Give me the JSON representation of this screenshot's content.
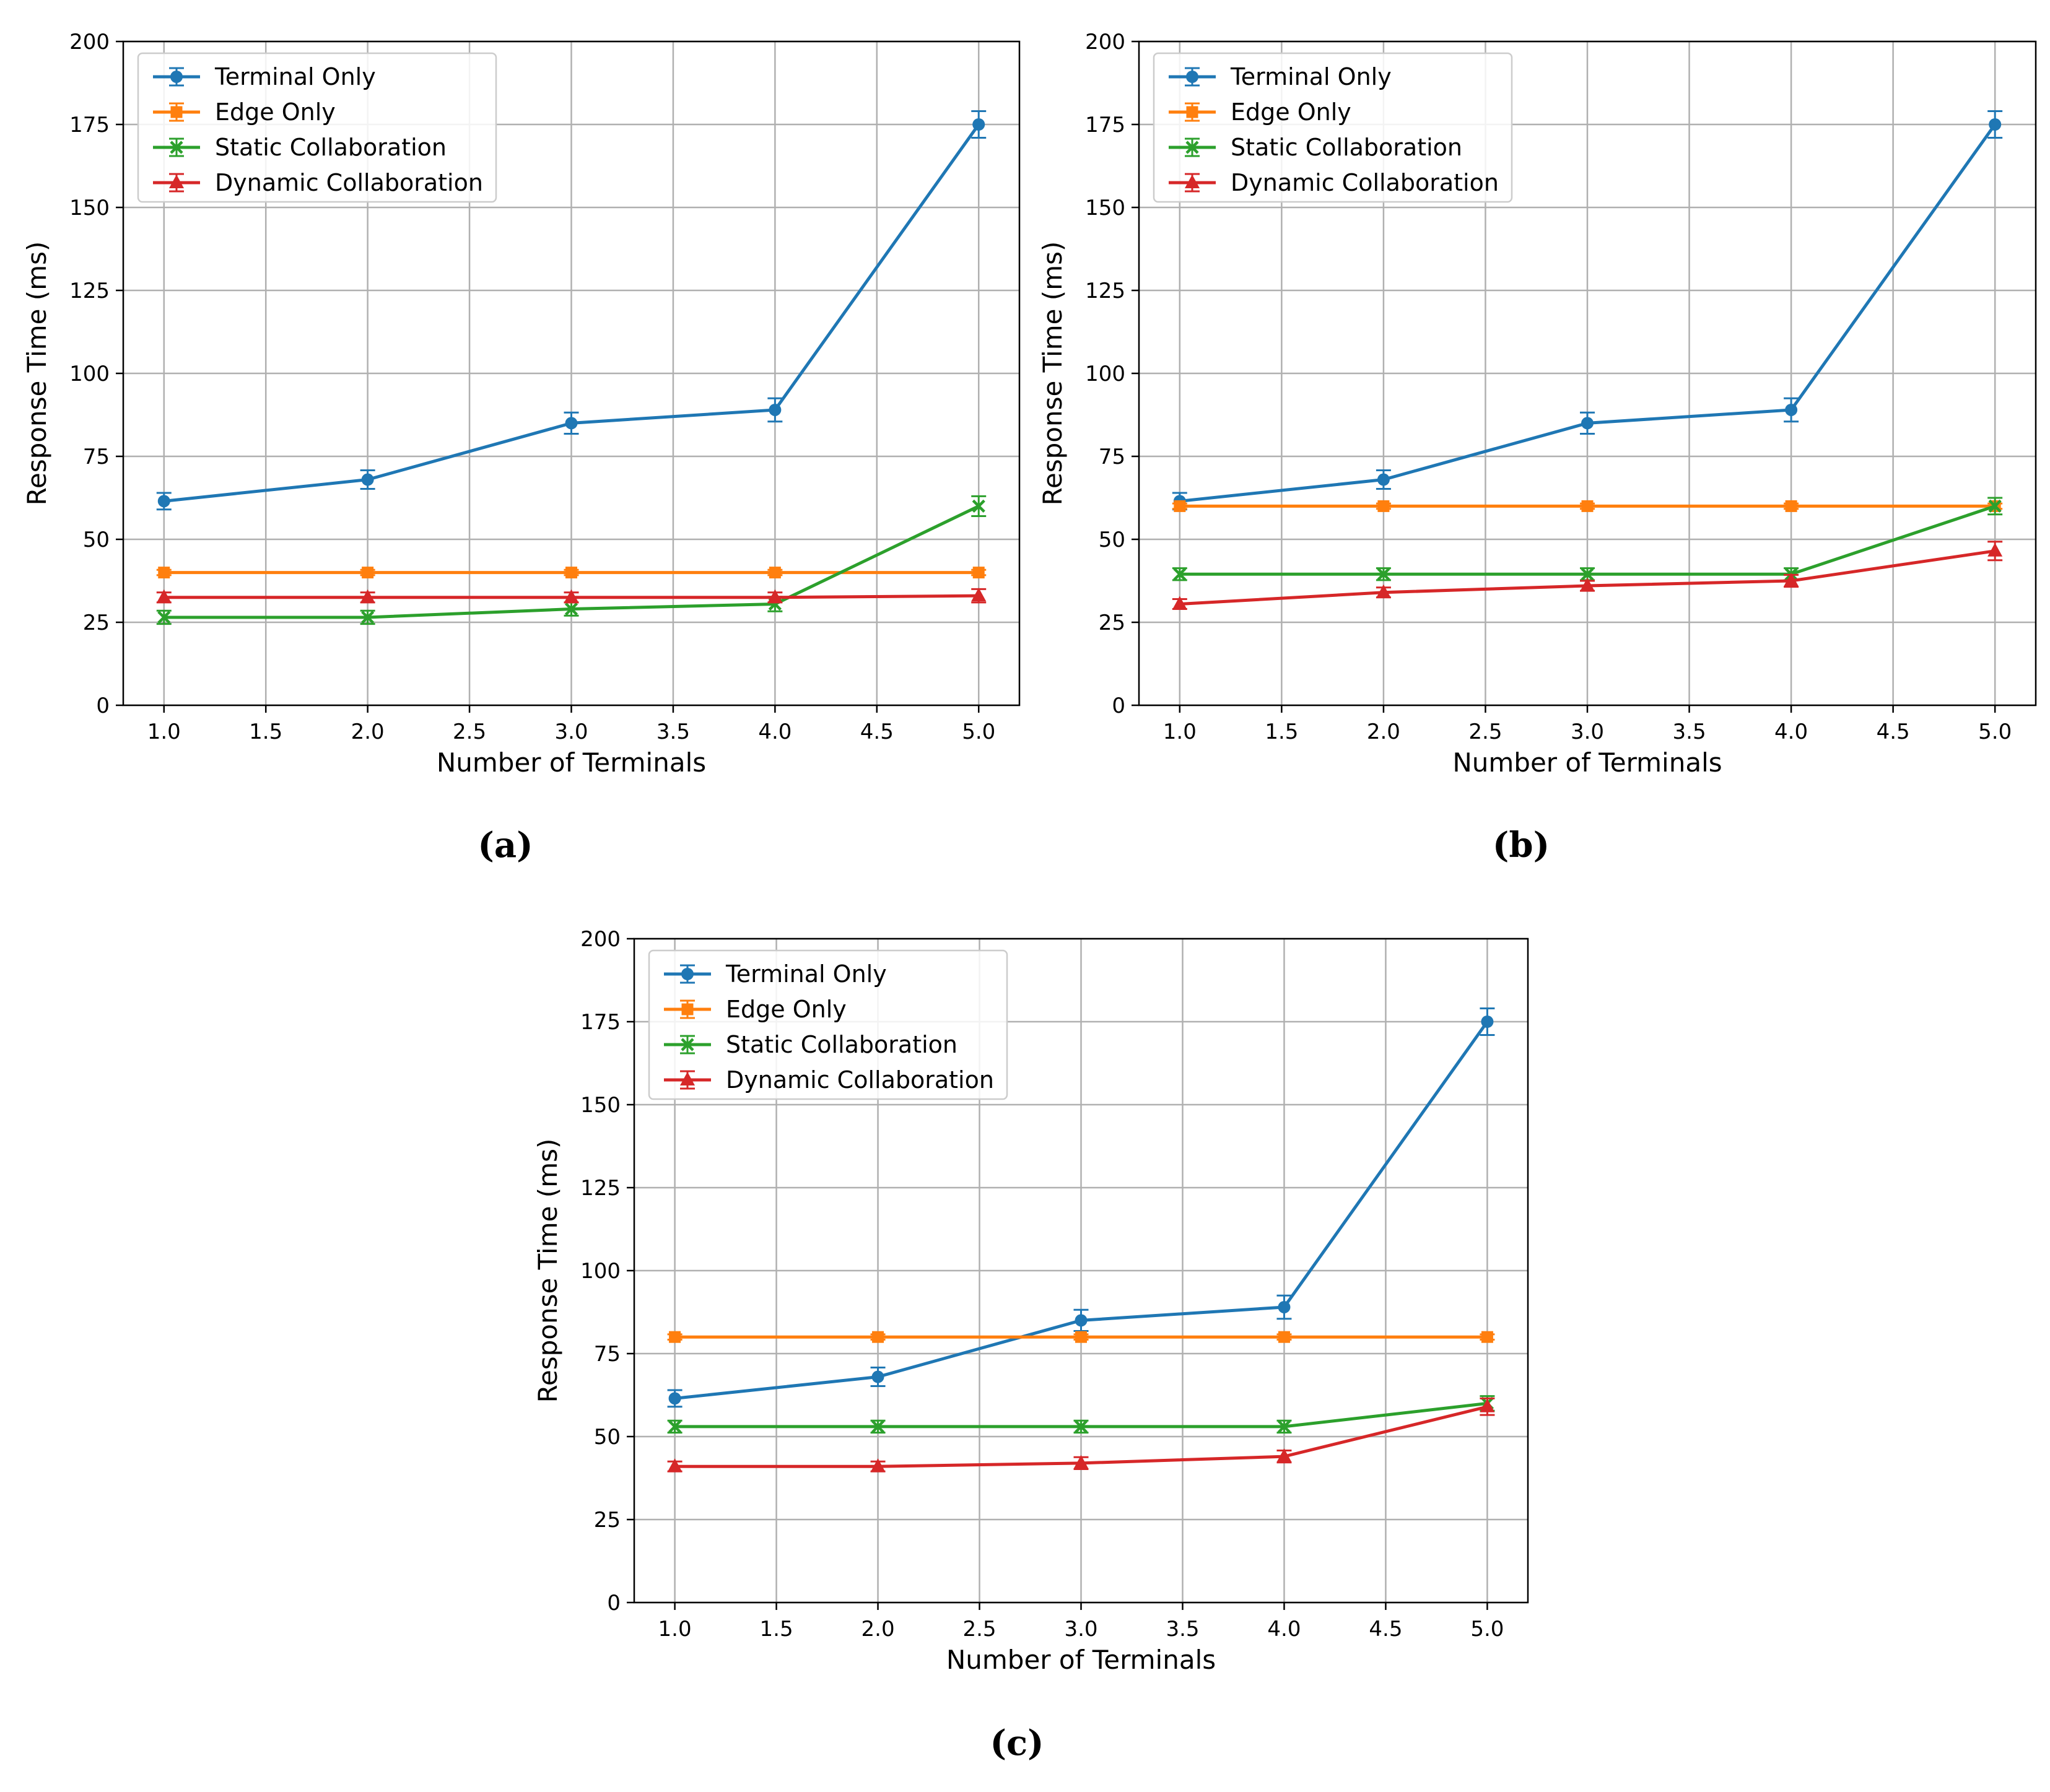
{
  "chart_data": [
    {
      "type": "line",
      "panel": "a",
      "caption": "(a)",
      "xlabel": "Number of Terminals",
      "ylabel": "Response Time (ms)",
      "xlim": [
        0.8,
        5.2
      ],
      "ylim": [
        0,
        200
      ],
      "xticks": [
        "1.0",
        "1.5",
        "2.0",
        "2.5",
        "3.0",
        "3.5",
        "4.0",
        "4.5",
        "5.0"
      ],
      "yticks": [
        "0",
        "25",
        "50",
        "75",
        "100",
        "125",
        "150",
        "175",
        "200"
      ],
      "grid": true,
      "legend": "upper-left",
      "x": [
        1,
        2,
        3,
        4,
        5
      ],
      "series": [
        {
          "name": "Terminal Only",
          "color": "#1f77b4",
          "marker": "circle",
          "values": [
            61.5,
            68,
            85,
            89,
            175
          ],
          "errors": [
            2.5,
            2.8,
            3.2,
            3.5,
            4.0
          ]
        },
        {
          "name": "Edge Only",
          "color": "#ff7f0e",
          "marker": "square",
          "values": [
            40,
            40,
            40,
            40,
            40
          ],
          "errors": [
            0.8,
            0.8,
            0.8,
            0.8,
            0.8
          ]
        },
        {
          "name": "Static Collaboration",
          "color": "#2ca02c",
          "marker": "x",
          "values": [
            26.5,
            26.5,
            29,
            30.5,
            60
          ],
          "errors": [
            2.0,
            2.0,
            2.0,
            2.2,
            3.0
          ]
        },
        {
          "name": "Dynamic Collaboration",
          "color": "#d62728",
          "marker": "triangle",
          "values": [
            32.5,
            32.5,
            32.5,
            32.5,
            33
          ],
          "errors": [
            1.5,
            1.5,
            1.5,
            1.5,
            2.0
          ]
        }
      ]
    },
    {
      "type": "line",
      "panel": "b",
      "caption": "(b)",
      "xlabel": "Number of Terminals",
      "ylabel": "Response Time (ms)",
      "xlim": [
        0.8,
        5.2
      ],
      "ylim": [
        0,
        200
      ],
      "xticks": [
        "1.0",
        "1.5",
        "2.0",
        "2.5",
        "3.0",
        "3.5",
        "4.0",
        "4.5",
        "5.0"
      ],
      "yticks": [
        "0",
        "25",
        "50",
        "75",
        "100",
        "125",
        "150",
        "175",
        "200"
      ],
      "grid": true,
      "legend": "upper-left",
      "x": [
        1,
        2,
        3,
        4,
        5
      ],
      "series": [
        {
          "name": "Terminal Only",
          "color": "#1f77b4",
          "marker": "circle",
          "values": [
            61.5,
            68,
            85,
            89,
            175
          ],
          "errors": [
            2.5,
            2.8,
            3.2,
            3.5,
            4.0
          ]
        },
        {
          "name": "Edge Only",
          "color": "#ff7f0e",
          "marker": "square",
          "values": [
            60,
            60,
            60,
            60,
            60
          ],
          "errors": [
            0.8,
            0.8,
            0.8,
            0.8,
            0.8
          ]
        },
        {
          "name": "Static Collaboration",
          "color": "#2ca02c",
          "marker": "x",
          "values": [
            39.5,
            39.5,
            39.5,
            39.5,
            60
          ],
          "errors": [
            1.8,
            1.8,
            1.8,
            1.8,
            2.5
          ]
        },
        {
          "name": "Dynamic Collaboration",
          "color": "#d62728",
          "marker": "triangle",
          "values": [
            30.5,
            34,
            36,
            37.5,
            46.5
          ],
          "errors": [
            1.5,
            1.5,
            1.5,
            1.8,
            2.8
          ]
        }
      ]
    },
    {
      "type": "line",
      "panel": "c",
      "caption": "(c)",
      "xlabel": "Number of Terminals",
      "ylabel": "Response Time (ms)",
      "xlim": [
        0.8,
        5.2
      ],
      "ylim": [
        0,
        200
      ],
      "xticks": [
        "1.0",
        "1.5",
        "2.0",
        "2.5",
        "3.0",
        "3.5",
        "4.0",
        "4.5",
        "5.0"
      ],
      "yticks": [
        "0",
        "25",
        "50",
        "75",
        "100",
        "125",
        "150",
        "175",
        "200"
      ],
      "grid": true,
      "legend": "upper-left",
      "x": [
        1,
        2,
        3,
        4,
        5
      ],
      "series": [
        {
          "name": "Terminal Only",
          "color": "#1f77b4",
          "marker": "circle",
          "values": [
            61.5,
            68,
            85,
            89,
            175
          ],
          "errors": [
            2.5,
            2.8,
            3.2,
            3.5,
            4.0
          ]
        },
        {
          "name": "Edge Only",
          "color": "#ff7f0e",
          "marker": "square",
          "values": [
            80,
            80,
            80,
            80,
            80
          ],
          "errors": [
            0.8,
            0.8,
            0.8,
            0.8,
            0.8
          ]
        },
        {
          "name": "Static Collaboration",
          "color": "#2ca02c",
          "marker": "x",
          "values": [
            53,
            53,
            53,
            53,
            60
          ],
          "errors": [
            1.8,
            1.8,
            1.8,
            1.8,
            2.2
          ]
        },
        {
          "name": "Dynamic Collaboration",
          "color": "#d62728",
          "marker": "triangle",
          "values": [
            41,
            41,
            42,
            44,
            59
          ],
          "errors": [
            1.5,
            1.5,
            1.8,
            1.8,
            2.5
          ]
        }
      ]
    }
  ]
}
